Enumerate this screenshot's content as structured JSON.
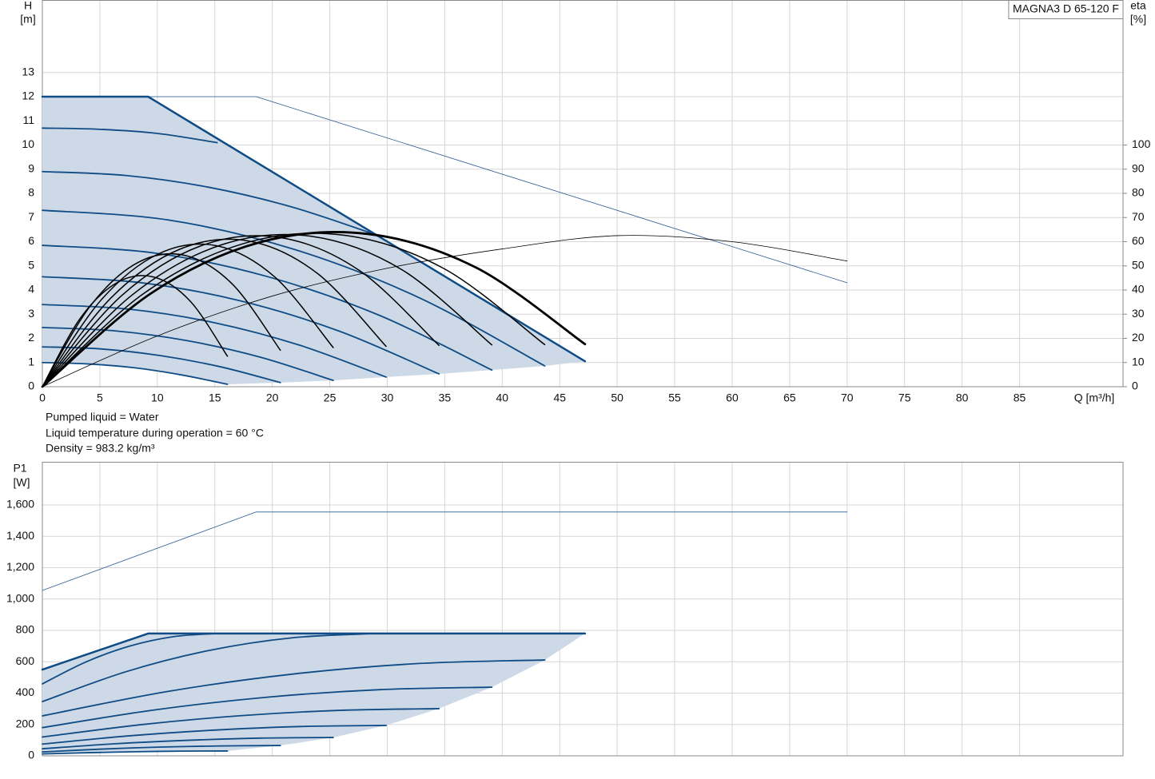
{
  "chart_data": [
    {
      "type": "line",
      "ylabel": [
        "H",
        "[m]"
      ],
      "y2label": [
        "eta",
        "[%]"
      ],
      "xlabel": "Q [m³/h]",
      "product": "MAGNA3 D 65-120 F",
      "xlim": [
        0,
        94
      ],
      "ylim": [
        0,
        16
      ],
      "y2lim": [
        0,
        160
      ],
      "xticks": [
        0,
        5,
        10,
        15,
        20,
        25,
        30,
        35,
        40,
        45,
        50,
        55,
        60,
        65,
        70,
        75,
        80,
        85
      ],
      "yticks": [
        0,
        1,
        2,
        3,
        4,
        5,
        6,
        7,
        8,
        9,
        10,
        11,
        12,
        13
      ],
      "y2ticks": [
        0,
        10,
        20,
        30,
        40,
        50,
        60,
        70,
        80,
        90,
        100
      ],
      "grid": true,
      "shade": "#cdd9e6",
      "max_curve": {
        "color": "#0f4c85",
        "line_width": 2.5,
        "x": [
          0,
          9.2,
          47.2
        ],
        "values": [
          12,
          12,
          1.05
        ]
      },
      "limit_curve": {
        "color": "#2b5a94",
        "line_width": 0.8,
        "x": [
          0,
          18.6,
          70
        ],
        "values": [
          12,
          12,
          4.3
        ]
      },
      "speed_curves": {
        "color": "#0f4c85",
        "line_width": 1.8,
        "curves": [
          {
            "x": [
              0,
              5,
              10,
              15.2
            ],
            "values": [
              10.7,
              10.65,
              10.48,
              10.1
            ]
          },
          {
            "x": [
              0,
              7.25,
              14.5,
              21.75,
              29
            ],
            "values": [
              8.9,
              8.74,
              8.25,
              7.43,
              6.29
            ]
          },
          {
            "x": [
              0,
              10.93,
              21.85,
              32.78,
              43.7
            ],
            "values": [
              7.3,
              6.9,
              5.69,
              3.68,
              0.86
            ]
          },
          {
            "x": [
              0,
              9.78,
              19.55,
              29.33,
              39.1
            ],
            "values": [
              5.85,
              5.53,
              4.56,
              2.95,
              0.69
            ]
          },
          {
            "x": [
              0,
              8.63,
              17.25,
              25.88,
              34.5
            ],
            "values": [
              4.55,
              4.3,
              3.55,
              2.29,
              0.53
            ]
          },
          {
            "x": [
              0,
              7.48,
              14.95,
              22.43,
              29.9
            ],
            "values": [
              3.4,
              3.21,
              2.65,
              1.71,
              0.4
            ]
          },
          {
            "x": [
              0,
              6.33,
              12.65,
              18.98,
              25.3
            ],
            "values": [
              2.45,
              2.31,
              1.9,
              1.22,
              0.26
            ]
          },
          {
            "x": [
              0,
              5.18,
              10.35,
              15.53,
              20.7
            ],
            "values": [
              1.65,
              1.56,
              1.28,
              0.82,
              0.17
            ]
          },
          {
            "x": [
              0,
              4.03,
              8.05,
              12.08,
              16.1
            ],
            "values": [
              1,
              0.94,
              0.78,
              0.49,
              0.1
            ]
          }
        ]
      },
      "efficiency_curves": {
        "color": "#000000",
        "axis": "y2",
        "curves": [
          {
            "line_width": 1.5,
            "x": [
              0,
              3.22,
              6.44,
              9.66,
              12.88,
              16.1
            ],
            "values": [
              0,
              27.8,
              42.9,
              45.4,
              35.3,
              12.6
            ]
          },
          {
            "line_width": 1.5,
            "x": [
              0,
              4.14,
              8.28,
              12.42,
              16.56,
              20.7
            ],
            "values": [
              0,
              33.2,
              51.3,
              54.3,
              42.3,
              15.1
            ]
          },
          {
            "line_width": 1.5,
            "x": [
              0,
              5.06,
              10.12,
              15.18,
              20.24,
              25.3
            ],
            "values": [
              0,
              35.6,
              55,
              58.3,
              45.3,
              16.2
            ]
          },
          {
            "line_width": 1.5,
            "x": [
              0,
              5.98,
              11.96,
              17.94,
              23.92,
              29.9
            ],
            "values": [
              0,
              36.8,
              56.9,
              60.3,
              46.9,
              16.7
            ]
          },
          {
            "line_width": 1.5,
            "x": [
              0,
              6.9,
              13.8,
              20.7,
              27.6,
              34.5
            ],
            "values": [
              0,
              37.7,
              58.3,
              61.7,
              48,
              17.1
            ]
          },
          {
            "line_width": 1.5,
            "x": [
              0,
              7.82,
              15.64,
              23.46,
              31.28,
              39.1
            ],
            "values": [
              0,
              38,
              58.8,
              62.2,
              48.4,
              17.3
            ]
          },
          {
            "line_width": 1.5,
            "x": [
              0,
              8.74,
              17.48,
              26.22,
              34.96,
              43.7
            ],
            "values": [
              0,
              38.3,
              59.2,
              62.7,
              48.8,
              17.4
            ]
          },
          {
            "line_width": 2.8,
            "x": [
              0,
              9.44,
              18.88,
              28.32,
              37.76,
              47.2
            ],
            "values": [
              0,
              38.6,
              59.7,
              63.2,
              49.2,
              17.6
            ]
          },
          {
            "line_width": 0.8,
            "x": [
              0,
              10,
              20,
              30,
              40,
              50,
              60,
              70
            ],
            "values": [
              0,
              21,
              37.5,
              49,
              57,
              62.5,
              60,
              52
            ]
          }
        ]
      },
      "notes": [
        "Pumped liquid = Water",
        "Liquid temperature during operation = 60 °C",
        "Density = 983.2 kg/m³"
      ]
    },
    {
      "type": "line",
      "ylabel": [
        "P1",
        "[W]"
      ],
      "xlim": [
        0,
        94
      ],
      "ylim": [
        0,
        1875
      ],
      "yticks": [
        0,
        200,
        400,
        600,
        800,
        {
          "value": 1000,
          "label": "1,000"
        },
        {
          "value": 1200,
          "label": "1,200"
        },
        {
          "value": 1400,
          "label": "1,400"
        },
        {
          "value": 1600,
          "label": "1,600"
        }
      ],
      "grid": true,
      "shade": "#cdd9e6",
      "max_curve": {
        "color": "#0f4c85",
        "line_width": 2.5,
        "x": [
          0,
          9.2,
          47.2
        ],
        "values": [
          550,
          780,
          780
        ]
      },
      "limit_curve": {
        "color": "#2b5a94",
        "line_width": 0.8,
        "x": [
          0,
          18.6,
          70
        ],
        "values": [
          1055,
          1555,
          1555
        ]
      },
      "speed_curves": {
        "color": "#0f4c85",
        "line_width": 1.8,
        "curves": [
          {
            "x": [
              0,
              3.8,
              7.6,
              11.4,
              15.2
            ],
            "values": [
              459,
              599,
              700,
              760,
              780
            ]
          },
          {
            "x": [
              0,
              7.25,
              14.5,
              21.75,
              29
            ],
            "values": [
              346,
              536,
              672,
              753,
              780
            ]
          },
          {
            "x": [
              0,
              10.93,
              21.85,
              32.78,
              43.7
            ],
            "values": [
              255,
              411,
              522,
              589,
              611
            ]
          },
          {
            "x": [
              0,
              9.78,
              19.55,
              29.33,
              39.1
            ],
            "values": [
              180,
              293,
              374,
              422,
              438
            ]
          },
          {
            "x": [
              0,
              8.63,
              17.25,
              25.88,
              34.5
            ],
            "values": [
              120,
              199,
              256,
              290,
              301
            ]
          },
          {
            "x": [
              0,
              7.48,
              14.95,
              22.43,
              29.9
            ],
            "values": [
              75,
              127,
              164,
              187,
              194
            ]
          },
          {
            "x": [
              0,
              6.33,
              12.65,
              18.98,
              25.3
            ],
            "values": [
              45,
              77,
              99,
              113,
              117
            ]
          },
          {
            "x": [
              0,
              5.18,
              10.35,
              15.53,
              20.7
            ],
            "values": [
              25,
              43,
              56,
              63,
              66
            ]
          },
          {
            "x": [
              0,
              4.03,
              8.05,
              12.08,
              16.1
            ],
            "values": [
              12,
              20,
              26,
              30,
              31
            ]
          }
        ]
      }
    }
  ]
}
